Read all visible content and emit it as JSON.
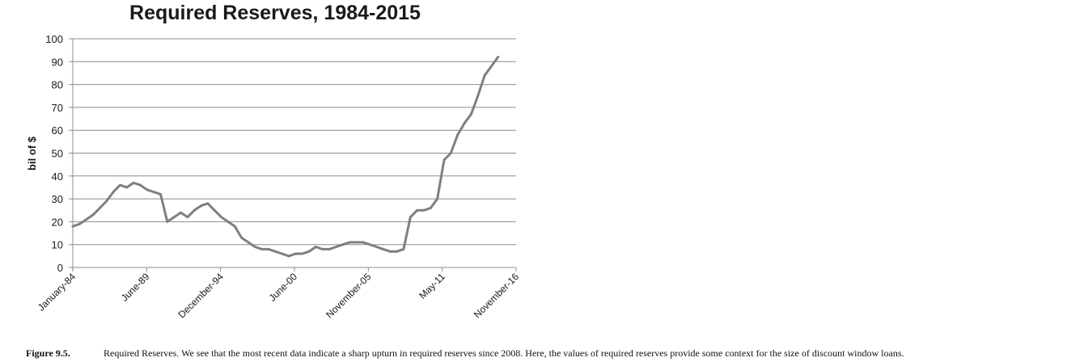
{
  "chart_data": {
    "type": "line",
    "title": "Required Reserves, 1984-2015",
    "xlabel": "",
    "ylabel": "bil of $",
    "ylim": [
      0,
      100
    ],
    "yticks": [
      "0",
      "10",
      "20",
      "30",
      "40",
      "50",
      "60",
      "70",
      "80",
      "90",
      "100"
    ],
    "xticks": [
      "January-84",
      "June-89",
      "December-94",
      "June-00",
      "November-05",
      "May-11",
      "November-16"
    ],
    "grid": "horizontal",
    "legend": "none",
    "color": "#7f7f7f",
    "series": [
      {
        "x": [
          "1984-01",
          "1984-07",
          "1985-01",
          "1985-07",
          "1986-01",
          "1986-07",
          "1987-01",
          "1987-07",
          "1988-01",
          "1988-07",
          "1989-01",
          "1989-07",
          "1990-01",
          "1990-07",
          "1991-01",
          "1991-07",
          "1992-01",
          "1992-07",
          "1993-01",
          "1993-07",
          "1994-01",
          "1994-07",
          "1995-01",
          "1995-07",
          "1996-01",
          "1996-07",
          "1997-01",
          "1997-07",
          "1998-01",
          "1998-07",
          "1999-01",
          "1999-07",
          "2000-01",
          "2000-07",
          "2001-01",
          "2001-07",
          "2002-01",
          "2002-07",
          "2003-01",
          "2003-07",
          "2004-01",
          "2004-07",
          "2005-01",
          "2005-07",
          "2006-01",
          "2006-07",
          "2007-01",
          "2007-07",
          "2008-01",
          "2008-07",
          "2009-01",
          "2009-07",
          "2010-01",
          "2010-07",
          "2011-01",
          "2011-07",
          "2012-01",
          "2012-07",
          "2013-01",
          "2013-07",
          "2014-01",
          "2014-07",
          "2015-01",
          "2015-07"
        ],
        "values": [
          18,
          19,
          21,
          23,
          26,
          29,
          33,
          36,
          35,
          37,
          36,
          34,
          33,
          32,
          20,
          22,
          24,
          22,
          25,
          27,
          28,
          25,
          22,
          20,
          18,
          13,
          11,
          9,
          8,
          8,
          7,
          6,
          5,
          6,
          6,
          7,
          9,
          8,
          8,
          9,
          10,
          11,
          11,
          11,
          10,
          9,
          8,
          7,
          7,
          8,
          22,
          25,
          25,
          26,
          30,
          47,
          50,
          58,
          63,
          67,
          75,
          84,
          88,
          92
        ]
      }
    ]
  },
  "caption": {
    "label": "Figure 9.5.",
    "text": "Required Reserves. We see that the most recent data indicate a sharp upturn in required reserves since 2008. Here, the values of required reserves provide some context for the size of discount window loans."
  }
}
